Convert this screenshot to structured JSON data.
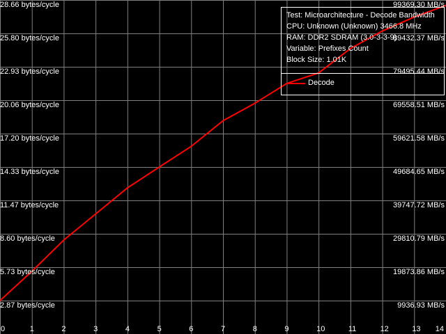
{
  "chart_data": {
    "type": "line",
    "x": [
      0,
      1,
      2,
      3,
      4,
      5,
      6,
      7,
      8,
      9,
      10,
      11,
      12,
      13,
      14
    ],
    "series": [
      {
        "name": "Decode",
        "color": "#ff0000",
        "values": [
          2.87,
          5.38,
          8.06,
          10.3,
          12.54,
          14.33,
          16.1,
          18.3,
          19.8,
          21.5,
          22.4,
          24.5,
          26.0,
          27.2,
          28.2
        ]
      }
    ],
    "xlim": [
      0,
      14
    ],
    "ylim": [
      0,
      28.66
    ],
    "x_ticks": [
      "0",
      "1",
      "2",
      "3",
      "4",
      "5",
      "6",
      "7",
      "8",
      "9",
      "10",
      "11",
      "12",
      "13",
      "14"
    ],
    "y_ticks_left": [
      "28.66 bytes/cycle",
      "25.80 bytes/cycle",
      "22.93 bytes/cycle",
      "20.06 bytes/cycle",
      "17.20 bytes/cycle",
      "14.33 bytes/cycle",
      "11.47 bytes/cycle",
      "8.60 bytes/cycle",
      "5.73 bytes/cycle",
      "2.87 bytes/cycle"
    ],
    "y_ticks_right": [
      "99369.30 MB/s",
      "89432.37 MB/s",
      "79495.44 MB/s",
      "69558.51 MB/s",
      "59621.58 MB/s",
      "49684.65 MB/s",
      "39747.72 MB/s",
      "29810.79 MB/s",
      "19873.86 MB/s",
      "9936.93 MB/s"
    ],
    "grid": true,
    "background": "#000000",
    "grid_color": "#808080",
    "legend_placement": "top-right"
  },
  "legend": {
    "info": [
      "Test: Microarchitecture - Decode Bandwidth",
      "CPU: Unknown (Unknown) 3466.8 MHz",
      "RAM: DDR2 SDRAM (3.0-3-3-9)",
      "Variable: Prefixes Count",
      "Block Size: 1.01K"
    ],
    "series_label": "Decode"
  }
}
